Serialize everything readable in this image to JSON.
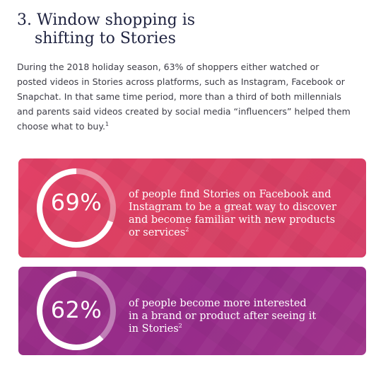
{
  "section": {
    "number": "3.",
    "title_line1": "Window shopping is",
    "title_line2": "shifting to Stories"
  },
  "intro": {
    "lines": [
      "During the 2018 holiday season, 63% of shoppers either watched or",
      "posted videos in Stories across platforms, such as Instagram, Facebook or",
      "Snapchat. In that same time period, more than a third of both millennials",
      "parents said videos created by social media “influencers” helped them",
      "choose what to buy."
    ],
    "line4_prefix": "and ",
    "footnote": "1"
  },
  "stats": [
    {
      "value_label": "69%",
      "value": 69,
      "lines": [
        "of people find Stories on Facebook and",
        "Instagram to be a great way to discover",
        "and become familiar with new products",
        "or services"
      ],
      "footnote": "2",
      "color": "#dd4064"
    },
    {
      "value_label": "62%",
      "value": 62,
      "lines": [
        "of people become more interested",
        "in a brand or product after seeing it",
        "in Stories"
      ],
      "footnote": "2",
      "color": "#992d88"
    }
  ]
}
